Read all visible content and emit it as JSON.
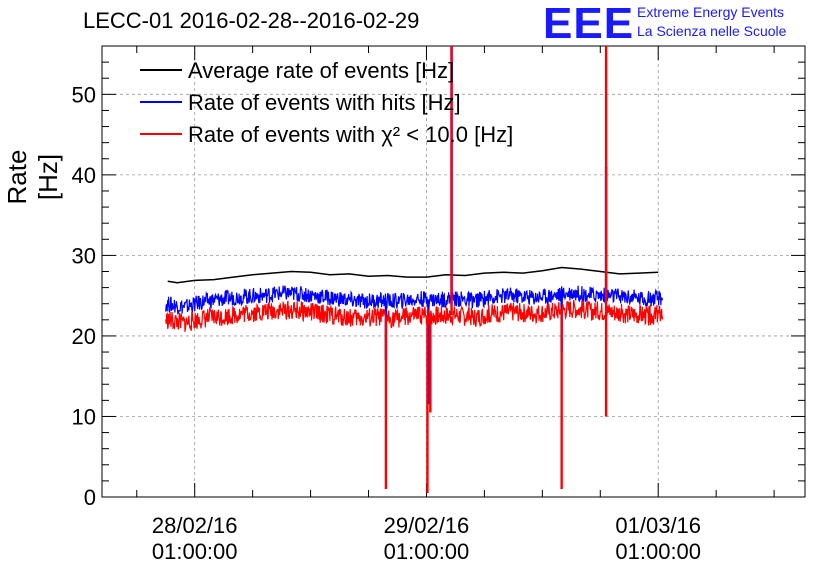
{
  "header": {
    "title": "LECC-01 2016-02-28--2016-02-29",
    "logo_text": "EEE",
    "logo_line1": "Extreme Energy Events",
    "logo_line2": "La Scienza nelle Scuole",
    "logo_color": "#1a1aff"
  },
  "chart_data": {
    "type": "line",
    "ylabel": "Rate [Hz]",
    "ylim": [
      0,
      56
    ],
    "yticks": [
      0,
      10,
      20,
      30,
      40,
      50
    ],
    "xlim_hours": [
      -9.6,
      63.2
    ],
    "xticks": [
      {
        "hour": 0,
        "date": "28/02/16",
        "time": "01:00:00"
      },
      {
        "hour": 24,
        "date": "29/02/16",
        "time": "01:00:00"
      },
      {
        "hour": 48,
        "date": "01/03/16",
        "time": "01:00:00"
      }
    ],
    "grid": true,
    "legend_position": "top-left",
    "series": [
      {
        "name": "Average rate of events [Hz]",
        "color": "#000000",
        "points": [
          [
            -2.8,
            26.8
          ],
          [
            -1.8,
            26.6
          ],
          [
            0,
            26.9
          ],
          [
            2,
            27.0
          ],
          [
            4,
            27.3
          ],
          [
            6,
            27.6
          ],
          [
            8,
            27.8
          ],
          [
            10,
            28.0
          ],
          [
            12,
            27.9
          ],
          [
            14,
            27.6
          ],
          [
            16,
            27.7
          ],
          [
            18,
            27.4
          ],
          [
            20,
            27.5
          ],
          [
            22,
            27.3
          ],
          [
            24,
            27.3
          ],
          [
            26,
            27.6
          ],
          [
            28,
            27.5
          ],
          [
            30,
            27.8
          ],
          [
            32,
            27.9
          ],
          [
            34,
            27.8
          ],
          [
            36,
            28.1
          ],
          [
            38,
            28.5
          ],
          [
            40,
            28.3
          ],
          [
            42,
            28.0
          ],
          [
            44,
            27.7
          ],
          [
            46,
            27.8
          ],
          [
            48,
            27.9
          ]
        ]
      },
      {
        "name": "Rate of events with hits [Hz]",
        "color": "#0000ff",
        "points": [
          [
            -3,
            24.0
          ],
          [
            -1,
            23.6
          ],
          [
            1,
            24.3
          ],
          [
            3,
            24.6
          ],
          [
            5,
            24.9
          ],
          [
            7,
            25.0
          ],
          [
            9,
            25.3
          ],
          [
            11,
            25.2
          ],
          [
            13,
            24.9
          ],
          [
            15,
            24.6
          ],
          [
            17,
            24.3
          ],
          [
            19,
            24.4
          ],
          [
            21,
            24.3
          ],
          [
            23,
            24.6
          ],
          [
            25,
            24.5
          ],
          [
            27,
            24.6
          ],
          [
            29,
            24.4
          ],
          [
            31,
            24.9
          ],
          [
            33,
            25.0
          ],
          [
            35,
            24.8
          ],
          [
            37,
            25.0
          ],
          [
            39,
            25.4
          ],
          [
            41,
            25.1
          ],
          [
            43,
            25.0
          ],
          [
            45,
            24.8
          ],
          [
            47,
            24.6
          ],
          [
            48.5,
            24.7
          ]
        ],
        "spikes": [
          {
            "hour": 19.8,
            "value": 17.0
          },
          {
            "hour": 24.2,
            "value": 11.5
          },
          {
            "hour": 26.6,
            "value": 56.0
          },
          {
            "hour": 38.0,
            "value": 18.0
          },
          {
            "hour": 42.6,
            "value": 41.0
          }
        ]
      },
      {
        "name": "Rate of events with χ² < 10.0 [Hz]",
        "color": "#ff0000",
        "points": [
          [
            -3,
            22.0
          ],
          [
            -1,
            21.6
          ],
          [
            1,
            22.2
          ],
          [
            3,
            22.4
          ],
          [
            5,
            22.8
          ],
          [
            7,
            23.0
          ],
          [
            9,
            23.2
          ],
          [
            11,
            23.1
          ],
          [
            13,
            22.8
          ],
          [
            15,
            22.4
          ],
          [
            17,
            22.2
          ],
          [
            19,
            22.3
          ],
          [
            21,
            22.2
          ],
          [
            23,
            22.5
          ],
          [
            25,
            22.5
          ],
          [
            27,
            22.6
          ],
          [
            29,
            22.3
          ],
          [
            31,
            22.8
          ],
          [
            33,
            23.0
          ],
          [
            35,
            22.8
          ],
          [
            37,
            23.0
          ],
          [
            39,
            23.4
          ],
          [
            41,
            23.1
          ],
          [
            43,
            23.0
          ],
          [
            45,
            22.7
          ],
          [
            47,
            22.5
          ],
          [
            48.5,
            22.7
          ]
        ],
        "spikes": [
          {
            "hour": 19.8,
            "value": 1.0
          },
          {
            "hour": 24.1,
            "value": 0.5
          },
          {
            "hour": 26.6,
            "value": 56.0
          },
          {
            "hour": 38.0,
            "value": 1.0
          },
          {
            "hour": 42.6,
            "value": 56.0
          }
        ],
        "dips": [
          {
            "hour": 24.4,
            "value": 10.5
          },
          {
            "hour": 42.6,
            "value": 10.0
          }
        ]
      }
    ]
  }
}
